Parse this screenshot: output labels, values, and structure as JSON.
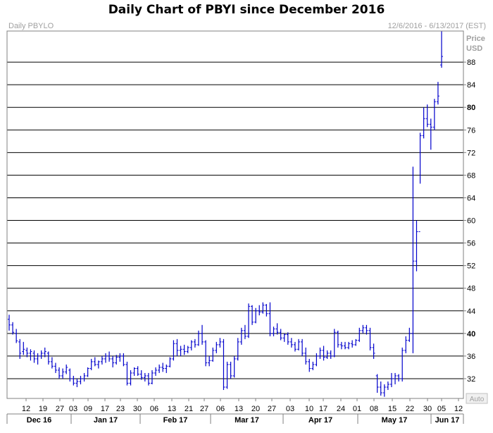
{
  "header": {
    "title": "Daily Chart of PBYI since December 2016",
    "symbol_label": "Daily PBYLO",
    "date_range": "12/6/2016 - 6/13/2017 (EST)",
    "price_label": "Price",
    "currency_label": "USD",
    "auto_label": "Auto"
  },
  "chart_data": {
    "type": "ohlc",
    "title": "Daily Chart of PBYI since December 2016",
    "xlabel": "",
    "ylabel": "Price USD",
    "ylim": [
      28.5,
      93.5
    ],
    "y_ticks": [
      32,
      36,
      40,
      44,
      48,
      52,
      56,
      60,
      64,
      68,
      72,
      76,
      80,
      84,
      88
    ],
    "highlighted_ticks": [
      40,
      80
    ],
    "grid": true,
    "x_day_ticks": [
      "12",
      "19",
      "27",
      "03",
      "09",
      "17",
      "23",
      "30",
      "06",
      "13",
      "21",
      "27",
      "06",
      "13",
      "20",
      "27",
      "03",
      "10",
      "17",
      "24",
      "01",
      "08",
      "15",
      "22",
      "30",
      "05",
      "12"
    ],
    "month_labels": [
      "Dec 16",
      "Jan 17",
      "Feb 17",
      "Mar 17",
      "Apr 17",
      "May 17",
      "Jun 17"
    ],
    "series": [
      {
        "values": [
          [
            42.5,
            43.3,
            40.5,
            41.5
          ],
          [
            41.5,
            42,
            39.8,
            40.2
          ],
          [
            40,
            40.8,
            38.3,
            38.7
          ],
          [
            38.5,
            39,
            35.5,
            36.5
          ],
          [
            36.8,
            38.5,
            36.2,
            37.2
          ],
          [
            37,
            37.5,
            35.8,
            36.5
          ],
          [
            36.5,
            37.2,
            35.2,
            36.8
          ],
          [
            36.5,
            37,
            34.8,
            35.5
          ],
          [
            35.5,
            36.5,
            34.5,
            36
          ],
          [
            36,
            37,
            35.5,
            36.5
          ],
          [
            36.5,
            37.5,
            35.8,
            36.8
          ],
          [
            36.5,
            36.8,
            34.5,
            35
          ],
          [
            35,
            35.8,
            33.8,
            34.2
          ],
          [
            34.2,
            34.8,
            33,
            33.5
          ],
          [
            33.5,
            34,
            32,
            32.5
          ],
          [
            32.5,
            33.8,
            32,
            33.2
          ],
          [
            33.2,
            34.5,
            32.8,
            34
          ],
          [
            33.5,
            33.8,
            31.5,
            32
          ],
          [
            32,
            32.5,
            30.8,
            31.2
          ],
          [
            31.2,
            32,
            30.5,
            31.5
          ],
          [
            31.5,
            32.5,
            31,
            32
          ],
          [
            32,
            33,
            31.5,
            32.5
          ],
          [
            32.5,
            34,
            32.3,
            33.8
          ],
          [
            33.8,
            35.5,
            33.5,
            35
          ],
          [
            35,
            35.8,
            34.2,
            34.5
          ],
          [
            34.5,
            35.2,
            33.8,
            35
          ],
          [
            35,
            36,
            34.5,
            35.5
          ],
          [
            35.5,
            36.5,
            34.8,
            36
          ],
          [
            36,
            36.8,
            35,
            35.5
          ],
          [
            35.5,
            36,
            34,
            34.8
          ],
          [
            34.8,
            36.2,
            34.5,
            35.8
          ],
          [
            35.8,
            36.5,
            35,
            36
          ],
          [
            36,
            36.5,
            34.2,
            34.5
          ],
          [
            34.5,
            35,
            30.8,
            31.2
          ],
          [
            31.2,
            33.5,
            30.8,
            33
          ],
          [
            33,
            34,
            32.5,
            33.8
          ],
          [
            33.8,
            34.2,
            32.5,
            32.8
          ],
          [
            32.8,
            33.5,
            31.8,
            32.2
          ],
          [
            32.2,
            33,
            31.5,
            32.5
          ],
          [
            32.5,
            33,
            30.8,
            31.2
          ],
          [
            31.2,
            33.5,
            31,
            33
          ],
          [
            33,
            34,
            32.5,
            33.5
          ],
          [
            33.5,
            34.5,
            33,
            34
          ],
          [
            34,
            34.8,
            33.2,
            33.8
          ],
          [
            33.8,
            34.5,
            33,
            34.2
          ],
          [
            34.2,
            35.8,
            34,
            35.5
          ],
          [
            35.5,
            38.8,
            35.2,
            38.2
          ],
          [
            38.2,
            39,
            36,
            37
          ],
          [
            37,
            37.8,
            36,
            37.2
          ],
          [
            37.2,
            38,
            36.2,
            36.8
          ],
          [
            36.8,
            37.8,
            36.5,
            37.5
          ],
          [
            37.5,
            38.8,
            37,
            38.5
          ],
          [
            38.5,
            39,
            37.5,
            38
          ],
          [
            38,
            40.5,
            37.8,
            40
          ],
          [
            40,
            41.5,
            38,
            38.5
          ],
          [
            38.5,
            38.8,
            34.2,
            34.8
          ],
          [
            34.8,
            36,
            34.2,
            35.2
          ],
          [
            35.2,
            37.5,
            35,
            37
          ],
          [
            37,
            38.5,
            36.5,
            38
          ],
          [
            38,
            39.2,
            37.5,
            38.5
          ],
          [
            38.5,
            39,
            30,
            30.5
          ],
          [
            30.5,
            35,
            30.2,
            34.5
          ],
          [
            34.5,
            35,
            32,
            32.5
          ],
          [
            32.5,
            36,
            32.2,
            35.5
          ],
          [
            35.5,
            39.2,
            35.2,
            38.5
          ],
          [
            38.5,
            41,
            38,
            40.5
          ],
          [
            40.5,
            41.5,
            39,
            39.5
          ],
          [
            39.5,
            45.3,
            39.2,
            44.8
          ],
          [
            44.8,
            45,
            41.5,
            42
          ],
          [
            42,
            44.5,
            41.8,
            44
          ],
          [
            44,
            45,
            43.2,
            43.8
          ],
          [
            43.8,
            45.5,
            43.5,
            45
          ],
          [
            45,
            45.2,
            43,
            43.5
          ],
          [
            43.5,
            45.5,
            39.5,
            40
          ],
          [
            40,
            41.2,
            39.5,
            40.8
          ],
          [
            40.8,
            41.8,
            39.8,
            40.2
          ],
          [
            40.2,
            40.8,
            38.8,
            39.2
          ],
          [
            39.2,
            40,
            38.5,
            39.8
          ],
          [
            39.8,
            40.2,
            38,
            38.5
          ],
          [
            38.5,
            39.2,
            37.5,
            38
          ],
          [
            38,
            38.5,
            36.8,
            37.2
          ],
          [
            37.2,
            39,
            37,
            38.5
          ],
          [
            38.5,
            39,
            36,
            36.5
          ],
          [
            36.5,
            37.5,
            34.5,
            35
          ],
          [
            35,
            35.5,
            33.2,
            33.8
          ],
          [
            33.8,
            35,
            33.5,
            34.5
          ],
          [
            34.5,
            36.5,
            34.2,
            36
          ],
          [
            36,
            37.5,
            35.5,
            37
          ],
          [
            37,
            37.8,
            35.2,
            35.8
          ],
          [
            35.8,
            37,
            35.5,
            36.5
          ],
          [
            36.5,
            37,
            35.5,
            36
          ],
          [
            36,
            40.8,
            35.8,
            40.2
          ],
          [
            40.2,
            40.5,
            37.5,
            38
          ],
          [
            38,
            38.5,
            37.2,
            37.8
          ],
          [
            37.8,
            38.5,
            37.2,
            37.5
          ],
          [
            37.5,
            38.5,
            37.2,
            38.2
          ],
          [
            38.2,
            38.8,
            37.5,
            38
          ],
          [
            38,
            39,
            37.8,
            38.8
          ],
          [
            38.8,
            41,
            38.5,
            40.5
          ],
          [
            40.5,
            41.5,
            40,
            41
          ],
          [
            41,
            41.5,
            39.8,
            40.5
          ],
          [
            40.5,
            41,
            37,
            37.5
          ],
          [
            37.5,
            38.2,
            35.5,
            36.5
          ],
          [
            32.5,
            32.8,
            29.5,
            30.5
          ],
          [
            30.5,
            31.5,
            29,
            29.5
          ],
          [
            29.5,
            31,
            28.8,
            30.5
          ],
          [
            30.5,
            31.5,
            30,
            31
          ],
          [
            31,
            33,
            30.5,
            32
          ],
          [
            32,
            33,
            31,
            32.5
          ],
          [
            32.5,
            32.8,
            31.5,
            32
          ],
          [
            32,
            37.5,
            31.5,
            37
          ],
          [
            37,
            39.5,
            36.5,
            38.8
          ],
          [
            38.8,
            41,
            38.5,
            40
          ],
          [
            40,
            69.5,
            36.5,
            52.8
          ],
          [
            52.8,
            60,
            51,
            58
          ],
          [
            58,
            75.5,
            66.5,
            75
          ],
          [
            75,
            80,
            74.5,
            78
          ],
          [
            78,
            80.5,
            76.5,
            77
          ],
          [
            77,
            78,
            72.5,
            76.5
          ],
          [
            76.5,
            81.5,
            76,
            81
          ],
          [
            81,
            84.5,
            80.5,
            82
          ],
          [
            87.5,
            93.5,
            87,
            89
          ]
        ]
      }
    ]
  }
}
